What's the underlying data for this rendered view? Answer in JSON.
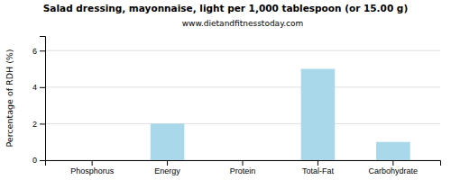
{
  "chart_data": {
    "type": "bar",
    "title": "Salad dressing, mayonnaise, light per 1,000 tablespoon (or 15.00 g)",
    "subtitle": "www.dietandfitnesstoday.com",
    "ylabel": "Percentage of RDH (%)",
    "categories": [
      "Phosphorus",
      "Energy",
      "Protein",
      "Total-Fat",
      "Carbohydrate"
    ],
    "values": [
      0,
      2,
      0,
      5,
      1
    ],
    "color": "#a8d8ea",
    "ylim": [
      0,
      6.8
    ],
    "yticks": [
      0,
      2,
      4,
      6
    ],
    "grid": true
  }
}
